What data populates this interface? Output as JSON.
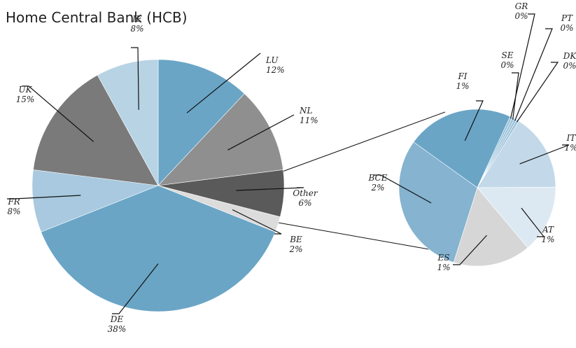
{
  "chart_data": {
    "type": "pie",
    "title": "Home Central Bank (HCB)",
    "main_pie": {
      "slices": [
        {
          "label": "LU",
          "value_label": "12%",
          "value": 12,
          "color": "#6aa5c6"
        },
        {
          "label": "NL",
          "value_label": "11%",
          "value": 11,
          "color": "#8f8f8f"
        },
        {
          "label": "Other",
          "value_label": "6%",
          "value": 6,
          "color": "#5a5a5a"
        },
        {
          "label": "BE",
          "value_label": "2%",
          "value": 2,
          "color": "#dcdcdc"
        },
        {
          "label": "DE",
          "value_label": "38%",
          "value": 38,
          "color": "#6aa5c6"
        },
        {
          "label": "FR",
          "value_label": "8%",
          "value": 8,
          "color": "#a8c9df"
        },
        {
          "label": "UK",
          "value_label": "15%",
          "value": 15,
          "color": "#7a7a7a"
        },
        {
          "label": "IE",
          "value_label": "8%",
          "value": 8,
          "color": "#b7d3e4"
        }
      ]
    },
    "other_breakdown": {
      "slices": [
        {
          "label": "IT",
          "value_label": "1%",
          "value": 1,
          "color": "#c3d9e9"
        },
        {
          "label": "AT",
          "value_label": "1%",
          "value": 1,
          "color": "#dde9f2"
        },
        {
          "label": "ES",
          "value_label": "1%",
          "value": 1,
          "color": "#d6d6d6"
        },
        {
          "label": "BCE",
          "value_label": "2%",
          "value": 2,
          "color": "#85b3d0"
        },
        {
          "label": "FI",
          "value_label": "1%",
          "value": 1,
          "color": "#6aa5c6"
        },
        {
          "label": "GR",
          "value_label": "0%",
          "value": 0,
          "color": "#9cc2da"
        },
        {
          "label": "SE",
          "value_label": "0%",
          "value": 0,
          "color": "#9cc2da"
        },
        {
          "label": "PT",
          "value_label": "0%",
          "value": 0,
          "color": "#9cc2da"
        },
        {
          "label": "DK",
          "value_label": "0%",
          "value": 0,
          "color": "#9cc2da"
        }
      ]
    }
  }
}
